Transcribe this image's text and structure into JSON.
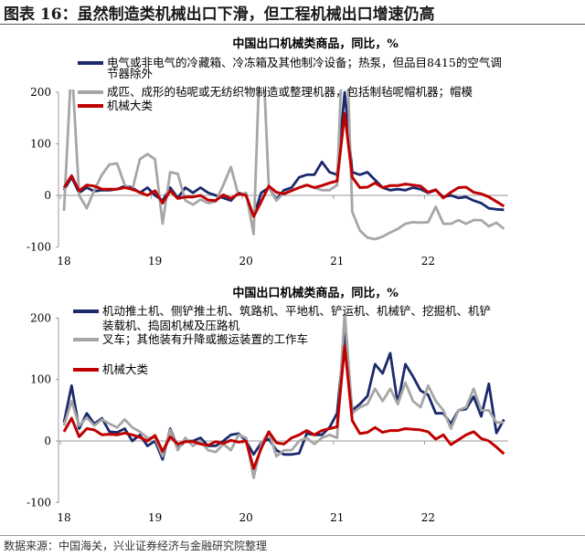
{
  "title": "图表 16：虽然制造类机械出口下滑，但工程机械出口增速仍高",
  "source": "数据来源：中国海关，兴业证券经济与金融研究院整理",
  "colors": {
    "navy": "#1a2a6c",
    "gray": "#a6a6a6",
    "red": "#c00000"
  },
  "chart_data": [
    {
      "type": "line",
      "title": "中国出口机械类商品，同比，%",
      "xlabel": "",
      "ylabel": "",
      "x_start": "2018-01",
      "x_end": "2022-11",
      "x_tick_labels": [
        "18",
        "19",
        "20",
        "21",
        "22"
      ],
      "y_tick_labels": [
        "200",
        "100",
        "0",
        "-100"
      ],
      "ylim": [
        -100,
        200
      ],
      "legend_position": "top-left",
      "series": [
        {
          "name": "电气或非电气的冷藏箱、冷冻箱及其他制冷设备；热泵，但品目8415的空气调节器除外",
          "legend_line1": "电气或非电气的冷藏箱、冷冻箱及其他制冷设备；热泵，但品目8415的空气调",
          "legend_line2": "节器除外",
          "color": "#1a2a6c",
          "values": [
            10,
            35,
            5,
            15,
            8,
            10,
            10,
            12,
            18,
            15,
            5,
            15,
            0,
            -10,
            15,
            -5,
            15,
            5,
            15,
            5,
            0,
            -5,
            -10,
            5,
            0,
            -40,
            5,
            15,
            -8,
            10,
            15,
            35,
            40,
            40,
            65,
            45,
            40,
            200,
            45,
            40,
            45,
            30,
            15,
            10,
            12,
            10,
            15,
            12,
            5,
            10,
            -3,
            0,
            -5,
            -3,
            -10,
            -15,
            -25,
            -27,
            -28
          ]
        },
        {
          "name": "成匹、成形的毡呢或无纺织物制造或整理机器，包括制毡呢帽机器；帽模",
          "color": "#a6a6a6",
          "values": [
            -30,
            260,
            0,
            -25,
            10,
            40,
            60,
            62,
            20,
            10,
            70,
            80,
            70,
            -55,
            45,
            42,
            -10,
            -18,
            -8,
            -15,
            -12,
            20,
            55,
            0,
            5,
            -75,
            350,
            15,
            -10,
            5,
            10,
            15,
            20,
            15,
            10,
            10,
            20,
            400,
            -32,
            -68,
            -82,
            -85,
            -80,
            -72,
            -65,
            -55,
            -52,
            -53,
            -52,
            -22,
            -55,
            -55,
            -48,
            -55,
            -48,
            -48,
            -60,
            -53,
            -65
          ]
        },
        {
          "name": "机械大类",
          "color": "#c00000",
          "values": [
            15,
            38,
            9,
            20,
            18,
            12,
            12,
            12,
            15,
            12,
            6,
            0,
            9,
            -15,
            9,
            -6,
            -3,
            -3,
            0,
            -9,
            -10,
            1,
            -6,
            3,
            0,
            -41,
            -12,
            18,
            6,
            3,
            9,
            15,
            20,
            15,
            19,
            24,
            28,
            159,
            35,
            15,
            16,
            24,
            15,
            19,
            19,
            22,
            20,
            18,
            6,
            11,
            -5,
            6,
            15,
            16,
            6,
            3,
            -3,
            -12,
            -21
          ]
        }
      ]
    },
    {
      "type": "line",
      "title": "中国出口机械类商品，同比，%",
      "xlabel": "",
      "ylabel": "",
      "x_start": "2018-01",
      "x_end": "2022-11",
      "x_tick_labels": [
        "18",
        "19",
        "20",
        "21",
        "22"
      ],
      "y_tick_labels": [
        "200",
        "100",
        "0",
        "-100"
      ],
      "ylim": [
        -100,
        200
      ],
      "legend_position": "top-left",
      "series": [
        {
          "name": "机动推土机、侧铲推土机、筑路机、平地机、铲运机、机械铲、挖掘机、机铲装载机、捣固机械及压路机",
          "legend_line1": "机动推土机、侧铲推土机、筑路机、平地机、铲运机、机械铲、挖掘机、机铲",
          "legend_line2": "装载机、捣固机械及压路机",
          "color": "#1a2a6c",
          "values": [
            30,
            90,
            20,
            45,
            28,
            37,
            15,
            14,
            20,
            0,
            10,
            -8,
            0,
            -30,
            20,
            -12,
            0,
            0,
            5,
            -8,
            -8,
            0,
            10,
            12,
            0,
            -22,
            -3,
            3,
            -15,
            -22,
            -22,
            -20,
            12,
            10,
            10,
            22,
            45,
            175,
            50,
            60,
            73,
            125,
            110,
            143,
            60,
            125,
            105,
            82,
            75,
            45,
            45,
            28,
            50,
            52,
            72,
            40,
            93,
            13,
            35
          ]
        },
        {
          "name": "叉车；其他装有升降或搬运装置的工作车",
          "color": "#a6a6a6",
          "values": [
            25,
            65,
            25,
            38,
            25,
            35,
            28,
            22,
            35,
            22,
            15,
            5,
            5,
            -25,
            18,
            -15,
            5,
            -8,
            0,
            -15,
            -18,
            -5,
            -15,
            10,
            5,
            -60,
            -5,
            15,
            -25,
            -15,
            -15,
            0,
            5,
            -5,
            5,
            10,
            5,
            210,
            45,
            55,
            60,
            85,
            65,
            85,
            60,
            95,
            65,
            55,
            90,
            65,
            50,
            20,
            50,
            55,
            85,
            50,
            50,
            30,
            30
          ]
        },
        {
          "name": "机械大类",
          "color": "#c00000",
          "values": [
            15,
            37,
            7,
            20,
            18,
            10,
            11,
            10,
            13,
            10,
            6,
            0,
            9,
            -17,
            7,
            -5,
            -1,
            -1,
            -5,
            -7,
            -1,
            -4,
            1,
            -2,
            0,
            -45,
            -12,
            15,
            -3,
            -5,
            5,
            10,
            17,
            10,
            17,
            20,
            23,
            155,
            33,
            12,
            14,
            22,
            14,
            17,
            17,
            20,
            19,
            18,
            15,
            3,
            10,
            -6,
            2,
            10,
            15,
            4,
            0,
            -10,
            -21
          ]
        }
      ]
    }
  ]
}
